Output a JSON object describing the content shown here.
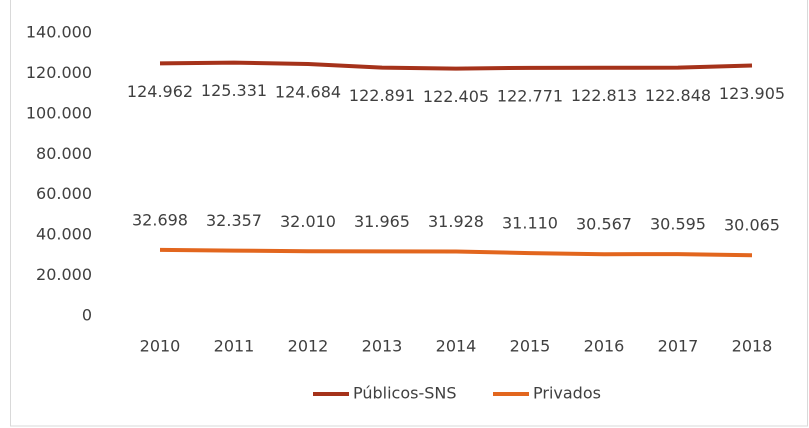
{
  "chart_data": {
    "type": "line",
    "categories": [
      "2010",
      "2011",
      "2012",
      "2013",
      "2014",
      "2015",
      "2016",
      "2017",
      "2018"
    ],
    "series": [
      {
        "name": "Públicos-SNS",
        "color": "#a5321a",
        "values": [
          124962,
          125331,
          124684,
          122891,
          122405,
          122771,
          122813,
          122848,
          123905
        ],
        "value_labels": [
          "124.962",
          "125.331",
          "124.684",
          "122.891",
          "122.405",
          "122.771",
          "122.813",
          "122.848",
          "123.905"
        ]
      },
      {
        "name": "Privados",
        "color": "#e2661e",
        "values": [
          32698,
          32357,
          32010,
          31965,
          31928,
          31110,
          30567,
          30595,
          30065
        ],
        "value_labels": [
          "32.698",
          "32.357",
          "32.010",
          "31.965",
          "31.928",
          "31.110",
          "30.567",
          "30.595",
          "30.065"
        ]
      }
    ],
    "ylim": [
      0,
      140000
    ],
    "yticks": [
      0,
      {
        "value": 20000,
        "label": "20.000"
      },
      {
        "value": 40000,
        "label": "40.000"
      },
      {
        "value": 60000,
        "label": "60.000"
      },
      {
        "value": 80000,
        "label": "80.000"
      },
      {
        "value": 100000,
        "label": "100.000"
      },
      {
        "value": 120000,
        "label": "120.000"
      },
      {
        "value": 140000,
        "label": "140.000"
      }
    ],
    "grid": false,
    "legend": "bottom"
  }
}
